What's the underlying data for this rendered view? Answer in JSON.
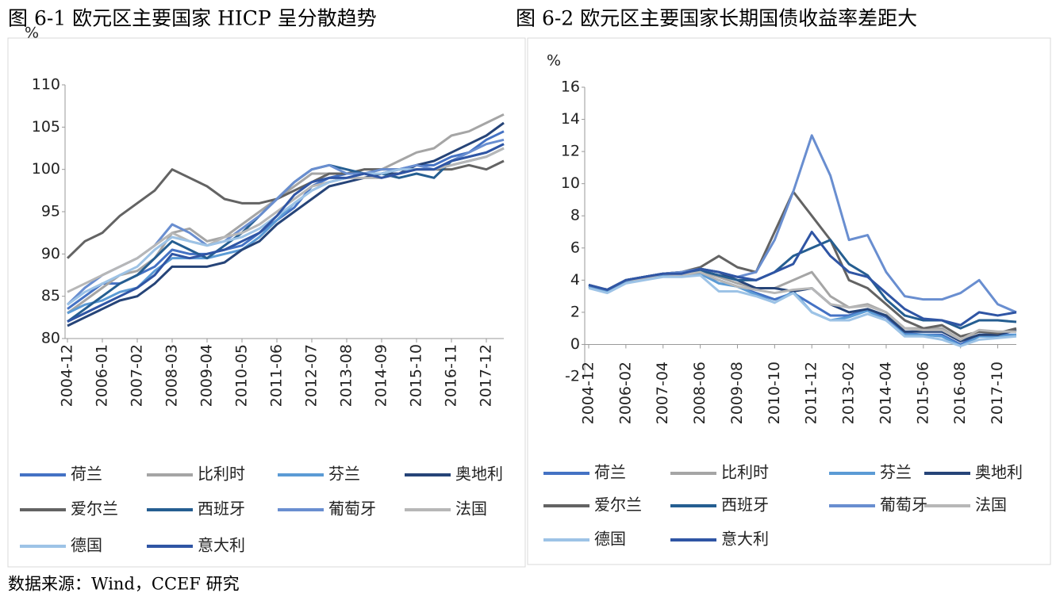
{
  "chart_data": [
    {
      "type": "line",
      "title": "图 6-1 欧元区主要国家 HICP 呈分散趋势",
      "y_label": "%",
      "categories": [
        "2004-12",
        null,
        "2006-01",
        null,
        "2007-02",
        null,
        "2008-03",
        null,
        "2009-04",
        null,
        "2010-05",
        null,
        "2011-06",
        null,
        "2012-07",
        null,
        "2013-08",
        null,
        "2014-09",
        null,
        "2015-10",
        null,
        "2016-11",
        null,
        "2017-12",
        null
      ],
      "ylim": [
        80,
        110
      ],
      "yticks": [
        80,
        85,
        90,
        95,
        100,
        105,
        110
      ],
      "legend": "bottom",
      "series": [
        {
          "name": "荷兰",
          "color": "#4472c4",
          "values": [
            83.5,
            85,
            86.5,
            86.5,
            87.5,
            88.5,
            90.5,
            90,
            90,
            90.5,
            91,
            92.5,
            94,
            95.5,
            98,
            99,
            99.5,
            99.5,
            99.5,
            100,
            100.5,
            100.5,
            101.5,
            102,
            103.5,
            104.5
          ]
        },
        {
          "name": "比利时",
          "color": "#a5a5a5",
          "values": [
            83,
            84.5,
            86,
            87.5,
            88,
            89.5,
            92.5,
            93,
            91.5,
            92,
            93.5,
            95,
            96.5,
            98,
            99.5,
            99.5,
            99.5,
            99.5,
            100,
            101,
            102,
            102.5,
            104,
            104.5,
            105.5,
            106.5
          ]
        },
        {
          "name": "芬兰",
          "color": "#5b9bd5",
          "values": [
            83,
            84,
            84.5,
            85.5,
            86,
            88,
            89.5,
            89.5,
            89.5,
            90,
            90.5,
            92,
            94,
            96,
            97.5,
            98.5,
            99,
            99.5,
            99.5,
            100,
            100,
            100,
            100.5,
            101,
            101.5,
            102.5
          ]
        },
        {
          "name": "奥地利",
          "color": "#264478",
          "values": [
            81.5,
            82.5,
            83.5,
            84.5,
            85,
            86.5,
            88.5,
            88.5,
            88.5,
            89,
            90.5,
            91.5,
            93.5,
            95,
            96.5,
            98,
            98.5,
            99,
            99.5,
            99.5,
            100.5,
            101,
            102,
            103,
            104,
            105.5
          ]
        },
        {
          "name": "爱尔兰",
          "color": "#636363",
          "values": [
            89.5,
            91.5,
            92.5,
            94.5,
            96,
            97.5,
            100,
            99,
            98,
            96.5,
            96,
            96,
            96.5,
            97.5,
            98.5,
            99.5,
            99.5,
            100,
            100,
            100,
            100,
            100,
            100,
            100.5,
            100,
            101
          ]
        },
        {
          "name": "西班牙",
          "color": "#255e91",
          "values": [
            82,
            83.5,
            85,
            86.5,
            87.5,
            89.5,
            91.5,
            90.5,
            89.5,
            91,
            92.5,
            94.5,
            96.5,
            98.5,
            100,
            100.5,
            100,
            99.5,
            99.5,
            99,
            99.5,
            99,
            101,
            101.5,
            102,
            103
          ]
        },
        {
          "name": "葡萄牙",
          "color": "#698ed0",
          "values": [
            84,
            86,
            87.5,
            88.5,
            89.5,
            91,
            93.5,
            92.5,
            91,
            91.5,
            93,
            94.5,
            96.5,
            98.5,
            100,
            100.5,
            99.5,
            99.5,
            100,
            100,
            100.5,
            100,
            101,
            102,
            103,
            103.5
          ]
        },
        {
          "name": "法国",
          "color": "#b7b7b7",
          "values": [
            85.5,
            86.5,
            87.5,
            88.5,
            89.5,
            91,
            92.5,
            91.5,
            91,
            92,
            92.5,
            93.5,
            95,
            96.5,
            98,
            98.5,
            99,
            99,
            99,
            99.5,
            100,
            100,
            100.5,
            101,
            101.5,
            102.5
          ]
        },
        {
          "name": "德国",
          "color": "#9dc3e6",
          "values": [
            84,
            85.5,
            86.5,
            87.5,
            88.5,
            90.5,
            92,
            91.5,
            91,
            91.5,
            92,
            93,
            94.5,
            96,
            97.5,
            98.5,
            99,
            99.5,
            99.5,
            100,
            100,
            100,
            101,
            101.5,
            102,
            103
          ]
        },
        {
          "name": "意大利",
          "color": "#2f55a4",
          "values": [
            82,
            83,
            84,
            85,
            86,
            87.5,
            90,
            89.5,
            90,
            90.5,
            91.5,
            92.5,
            94.5,
            97,
            98.5,
            99,
            99,
            99.5,
            99,
            99.5,
            100,
            100,
            101,
            101.5,
            102,
            103
          ]
        }
      ]
    },
    {
      "type": "line",
      "title": "图 6-2 欧元区主要国家长期国债收益率差距大",
      "y_label": "%",
      "categories": [
        "2004-12",
        null,
        "2006-02",
        null,
        "2007-04",
        null,
        "2008-06",
        null,
        "2009-08",
        null,
        "2010-10",
        null,
        "2011-12",
        null,
        "2013-02",
        null,
        "2014-04",
        null,
        "2015-06",
        null,
        "2016-08",
        null,
        "2017-10",
        null
      ],
      "ylim": [
        -2,
        16
      ],
      "yticks": [
        -2,
        0,
        2,
        4,
        6,
        8,
        10,
        12,
        14,
        16
      ],
      "legend": "bottom",
      "series": [
        {
          "name": "荷兰",
          "color": "#4472c4",
          "values": [
            3.6,
            3.3,
            3.9,
            4.1,
            4.3,
            4.3,
            4.4,
            4,
            3.6,
            3.2,
            2.8,
            3.2,
            2.5,
            1.8,
            1.8,
            2.2,
            1.7,
            0.7,
            0.6,
            0.6,
            0,
            0.6,
            0.6,
            0.6
          ]
        },
        {
          "name": "比利时",
          "color": "#a5a5a5",
          "values": [
            3.7,
            3.4,
            4,
            4.2,
            4.4,
            4.4,
            4.6,
            4.2,
            3.8,
            3.5,
            3.5,
            4,
            4.5,
            3,
            2.3,
            2.5,
            2,
            1,
            1,
            1,
            0.3,
            0.8,
            0.7,
            0.9
          ]
        },
        {
          "name": "芬兰",
          "color": "#5b9bd5",
          "values": [
            3.6,
            3.3,
            3.9,
            4.1,
            4.3,
            4.3,
            4.4,
            3.8,
            3.6,
            3.1,
            2.6,
            3.3,
            2,
            1.5,
            1.7,
            2.1,
            1.5,
            0.6,
            0.6,
            0.5,
            -0.1,
            0.5,
            0.5,
            0.6
          ]
        },
        {
          "name": "奥地利",
          "color": "#264478",
          "values": [
            3.7,
            3.4,
            4,
            4.2,
            4.4,
            4.5,
            4.7,
            4.5,
            4,
            3.5,
            3.5,
            3.3,
            3.5,
            2.5,
            2,
            2.2,
            1.8,
            0.8,
            0.8,
            0.8,
            0.2,
            0.6,
            0.6,
            0.9
          ]
        },
        {
          "name": "爱尔兰",
          "color": "#636363",
          "values": [
            3.7,
            3.4,
            4,
            4.2,
            4.4,
            4.5,
            4.8,
            5.5,
            4.8,
            4.5,
            7,
            9.5,
            8,
            6.5,
            4,
            3.5,
            2.5,
            1.5,
            1,
            1.2,
            0.5,
            0.8,
            0.7,
            1
          ]
        },
        {
          "name": "西班牙",
          "color": "#255e91",
          "values": [
            3.7,
            3.4,
            4,
            4.2,
            4.4,
            4.4,
            4.6,
            4.3,
            4,
            4,
            4.5,
            5.5,
            6,
            6.5,
            5,
            4.3,
            2.8,
            1.8,
            1.5,
            1.5,
            1,
            1.5,
            1.5,
            1.4
          ]
        },
        {
          "name": "葡萄牙",
          "color": "#698ed0",
          "values": [
            3.7,
            3.4,
            4,
            4.2,
            4.4,
            4.5,
            4.7,
            4.5,
            4.2,
            4.5,
            6.5,
            9.5,
            13,
            10.5,
            6.5,
            6.8,
            4.5,
            3,
            2.8,
            2.8,
            3.2,
            4,
            2.5,
            2
          ]
        },
        {
          "name": "法国",
          "color": "#b7b7b7",
          "values": [
            3.7,
            3.4,
            4,
            4.1,
            4.4,
            4.3,
            4.5,
            4,
            3.6,
            3.4,
            3.2,
            3.4,
            3.5,
            2.5,
            2.3,
            2.4,
            2,
            1,
            0.9,
            0.9,
            0.3,
            0.9,
            0.8,
            0.8
          ]
        },
        {
          "name": "德国",
          "color": "#9dc3e6",
          "values": [
            3.5,
            3.2,
            3.8,
            4,
            4.2,
            4.2,
            4.3,
            3.3,
            3.3,
            3,
            2.6,
            3.2,
            2,
            1.5,
            1.5,
            1.9,
            1.5,
            0.5,
            0.5,
            0.3,
            -0.1,
            0.3,
            0.4,
            0.5
          ]
        },
        {
          "name": "意大利",
          "color": "#2f55a4",
          "values": [
            3.7,
            3.4,
            4,
            4.2,
            4.4,
            4.4,
            4.7,
            4.5,
            4.2,
            4,
            4.5,
            5,
            7,
            5.5,
            4.5,
            4.2,
            3.2,
            2.2,
            1.6,
            1.5,
            1.2,
            2,
            1.8,
            2
          ]
        }
      ]
    }
  ],
  "source": "数据来源：Wind，CCEF 研究"
}
